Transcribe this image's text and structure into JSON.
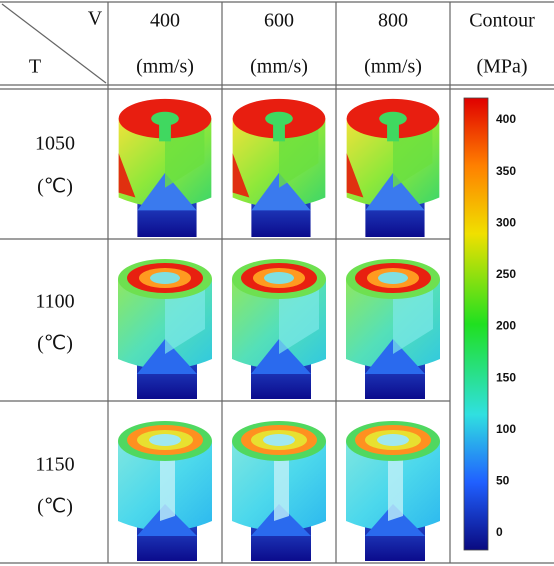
{
  "header": {
    "corner_top": "V",
    "corner_bottom": "T",
    "columns": [
      {
        "value": "400",
        "unit": "(mm/s)"
      },
      {
        "value": "600",
        "unit": "(mm/s)"
      },
      {
        "value": "800",
        "unit": "(mm/s)"
      },
      {
        "value": "Contour",
        "unit": "(MPa)"
      }
    ]
  },
  "rows": [
    {
      "value": "1050",
      "unit": "(℃)"
    },
    {
      "value": "1100",
      "unit": "(℃)"
    },
    {
      "value": "1150",
      "unit": "(℃)"
    }
  ],
  "colorbar": {
    "ticks": [
      400,
      350,
      300,
      250,
      200,
      150,
      100,
      50,
      0
    ]
  }
}
